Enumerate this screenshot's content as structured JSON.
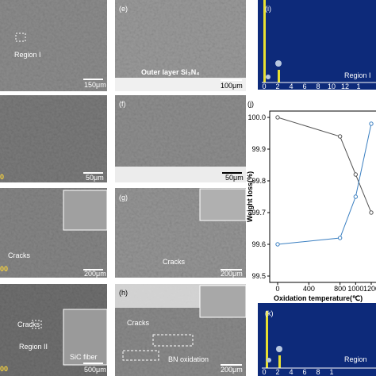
{
  "panels": {
    "a": {
      "region": "Region I",
      "scale": "150μm"
    },
    "b": {
      "scale": "50μm",
      "cropped_label": "0"
    },
    "c": {
      "cracks": "Cracks",
      "scale": "200μm",
      "cropped_label": "00"
    },
    "d": {
      "cracks": "Cracks",
      "fiber": "SiC fiber",
      "region": "Region II",
      "scale": "500μm",
      "cropped_label": "00"
    },
    "e": {
      "label": "(e)",
      "layer": "Outer layer Si₃N₄",
      "scale": "100μm"
    },
    "f": {
      "label": "(f)",
      "scale": "50μm"
    },
    "g": {
      "label": "(g)",
      "cracks": "Cracks",
      "scale": "200μm"
    },
    "h": {
      "label": "(h)",
      "cracks": "Cracks",
      "oxidation": "BN oxidation",
      "scale": "200μm"
    },
    "i": {
      "label": "(i)",
      "region": "Region I",
      "axis": [
        "0",
        "2",
        "4",
        "6",
        "8",
        "10",
        "12",
        "1"
      ]
    },
    "j": {
      "label": "(j)"
    },
    "k": {
      "label": "(k)",
      "region": "Region",
      "axis": [
        "0",
        "2",
        "4",
        "6",
        "8",
        "1"
      ]
    }
  },
  "chart_data": {
    "type": "line",
    "x_label": "Oxidation temperature(℃)",
    "y_label": "Weight loss(%)",
    "x": [
      0,
      800,
      1000,
      1200
    ],
    "series": [
      {
        "color": "#555555",
        "values": [
          100.0,
          99.94,
          99.82,
          99.7
        ]
      },
      {
        "color": "#3a7fc1",
        "values": [
          99.6,
          99.62,
          99.75,
          99.98
        ]
      }
    ],
    "xlim": [
      0,
      1200
    ],
    "xticks": [
      0,
      400,
      800,
      1000,
      1200
    ],
    "ylim": [
      99.5,
      100.0
    ],
    "yticks": [
      {
        "value": 99.5,
        "label": "99.5"
      },
      {
        "value": 99.6,
        "label": "99.6"
      },
      {
        "value": 99.7,
        "label": "99.7"
      },
      {
        "value": 99.8,
        "label": "99.8"
      },
      {
        "value": 99.9,
        "label": "99.9"
      },
      {
        "value": 100.0,
        "label": "100.0"
      }
    ]
  }
}
